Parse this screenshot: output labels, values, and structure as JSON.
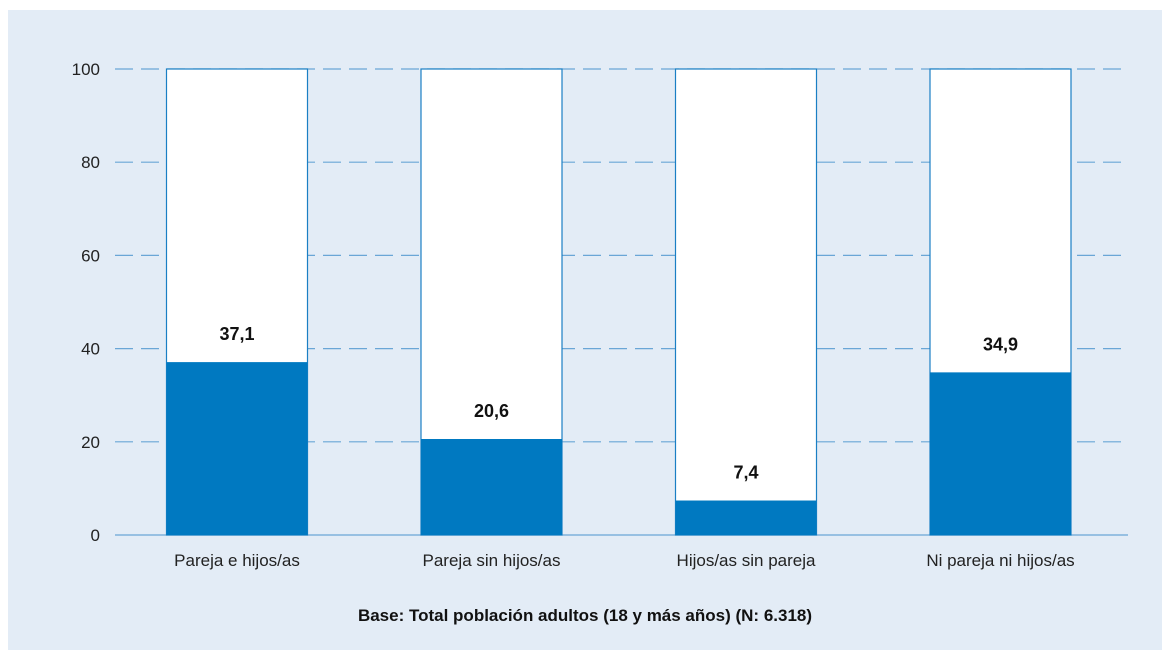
{
  "chart_data": {
    "type": "bar",
    "categories": [
      "Pareja e hijos/as",
      "Pareja sin hijos/as",
      "Hijos/as sin pareja",
      "Ni pareja ni hijos/as"
    ],
    "values": [
      37.1,
      20.6,
      7.4,
      34.9
    ],
    "value_labels": [
      "37,1",
      "20,6",
      "7,4",
      "34,9"
    ],
    "y_ticks": [
      "0",
      "20",
      "40",
      "60",
      "80",
      "100"
    ],
    "ylim": [
      0,
      100
    ],
    "total": 100,
    "grid": true,
    "grid_style": "dashed",
    "title": "",
    "xlabel": "",
    "ylabel": "",
    "colors": {
      "fill": "#0079c1",
      "remainder": "#ffffff",
      "outline": "#1a7fc4",
      "grid": "#6aa6d6",
      "background": "#e3ecf6"
    }
  },
  "footnote": "Base: Total población adultos (18 y más años) (N: 6.318)"
}
